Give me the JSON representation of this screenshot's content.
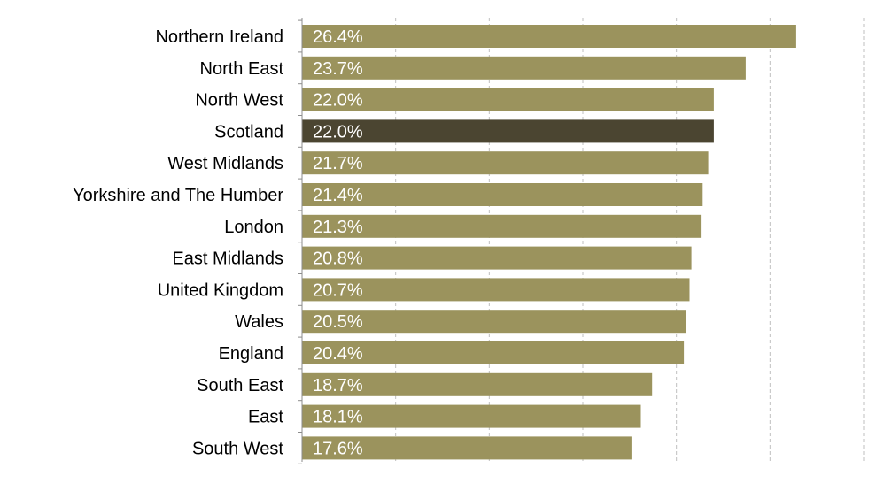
{
  "chart_data": {
    "type": "bar",
    "orientation": "horizontal",
    "categories": [
      "Northern Ireland",
      "North East",
      "North West",
      "Scotland",
      "West Midlands",
      "Yorkshire and The Humber",
      "London",
      "East Midlands",
      "United Kingdom",
      "Wales",
      "England",
      "South East",
      "East",
      "South West"
    ],
    "values": [
      26.4,
      23.7,
      22.0,
      22.0,
      21.7,
      21.4,
      21.3,
      20.8,
      20.7,
      20.5,
      20.4,
      18.7,
      18.1,
      17.6
    ],
    "data_labels": [
      "26.4%",
      "23.7%",
      "22.0%",
      "22.0%",
      "21.7%",
      "21.4%",
      "21.3%",
      "20.8%",
      "20.7%",
      "20.5%",
      "20.4%",
      "18.7%",
      "18.1%",
      "17.6%"
    ],
    "highlight_category": "Scotland",
    "xlim": [
      0,
      30
    ],
    "grid": true,
    "grid_style": "dashed-vertical",
    "axis_tick_labels_shown": false,
    "colors": {
      "bar": "#9b935d",
      "highlight_bar": "#4b4531",
      "grid": "#bfbfbf",
      "axis": "#8c8c8c",
      "value_label": "#ffffff",
      "category_label": "#000000"
    }
  }
}
